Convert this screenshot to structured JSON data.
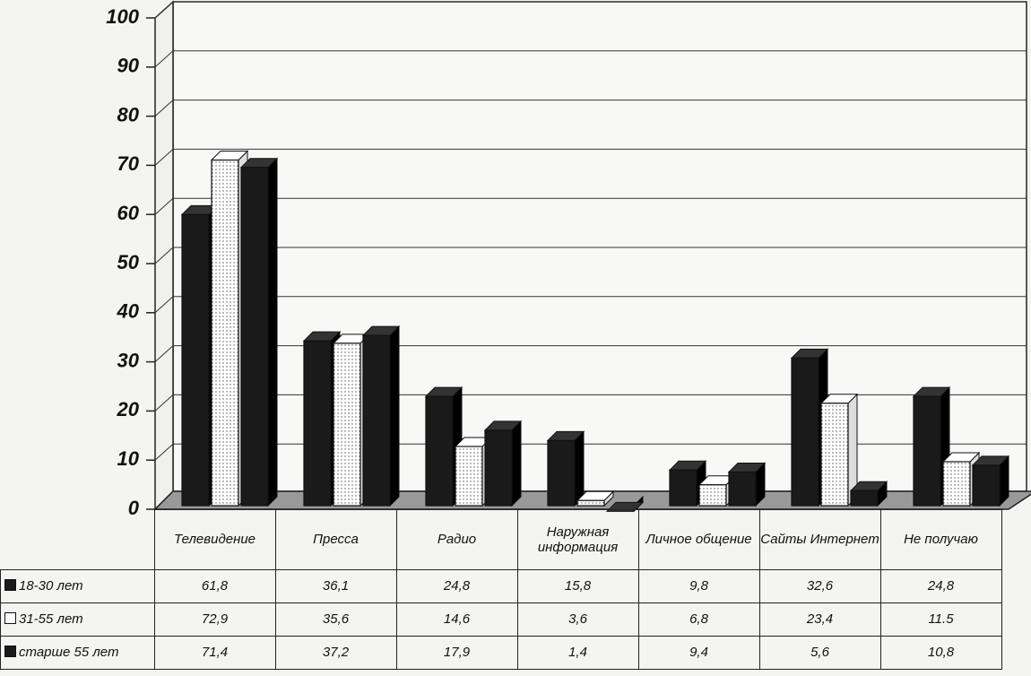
{
  "chart_data": {
    "type": "bar",
    "categories": [
      "Телевидение",
      "Пресса",
      "Радио",
      "Наружная информация",
      "Личное общение",
      "Сайты Интернет",
      "Не получаю"
    ],
    "series": [
      {
        "name": "18-30 лет",
        "color": "#1a1a1a",
        "values": [
          61.8,
          36.1,
          24.8,
          15.8,
          9.8,
          32.6,
          24.8
        ],
        "value_labels": [
          "61,8",
          "36,1",
          "24,8",
          "15,8",
          "9,8",
          "32,6",
          "24,8"
        ]
      },
      {
        "name": "31-55 лет",
        "color": "#ffffff",
        "values": [
          72.9,
          35.6,
          14.6,
          3.6,
          6.8,
          23.4,
          11.5
        ],
        "value_labels": [
          "72,9",
          "35,6",
          "14,6",
          "3,6",
          "6,8",
          "23,4",
          "11.5"
        ]
      },
      {
        "name": "старше 55 лет",
        "color": "#1a1a1a",
        "values": [
          71.4,
          37.2,
          17.9,
          1.4,
          9.4,
          5.6,
          10.8
        ],
        "value_labels": [
          "71,4",
          "37,2",
          "17,9",
          "1,4",
          "9,4",
          "5,6",
          "10,8"
        ]
      }
    ],
    "ylim": [
      0,
      100
    ],
    "yticks": [
      0,
      10,
      20,
      30,
      40,
      50,
      60,
      70,
      80,
      90,
      100
    ],
    "grid": true
  }
}
